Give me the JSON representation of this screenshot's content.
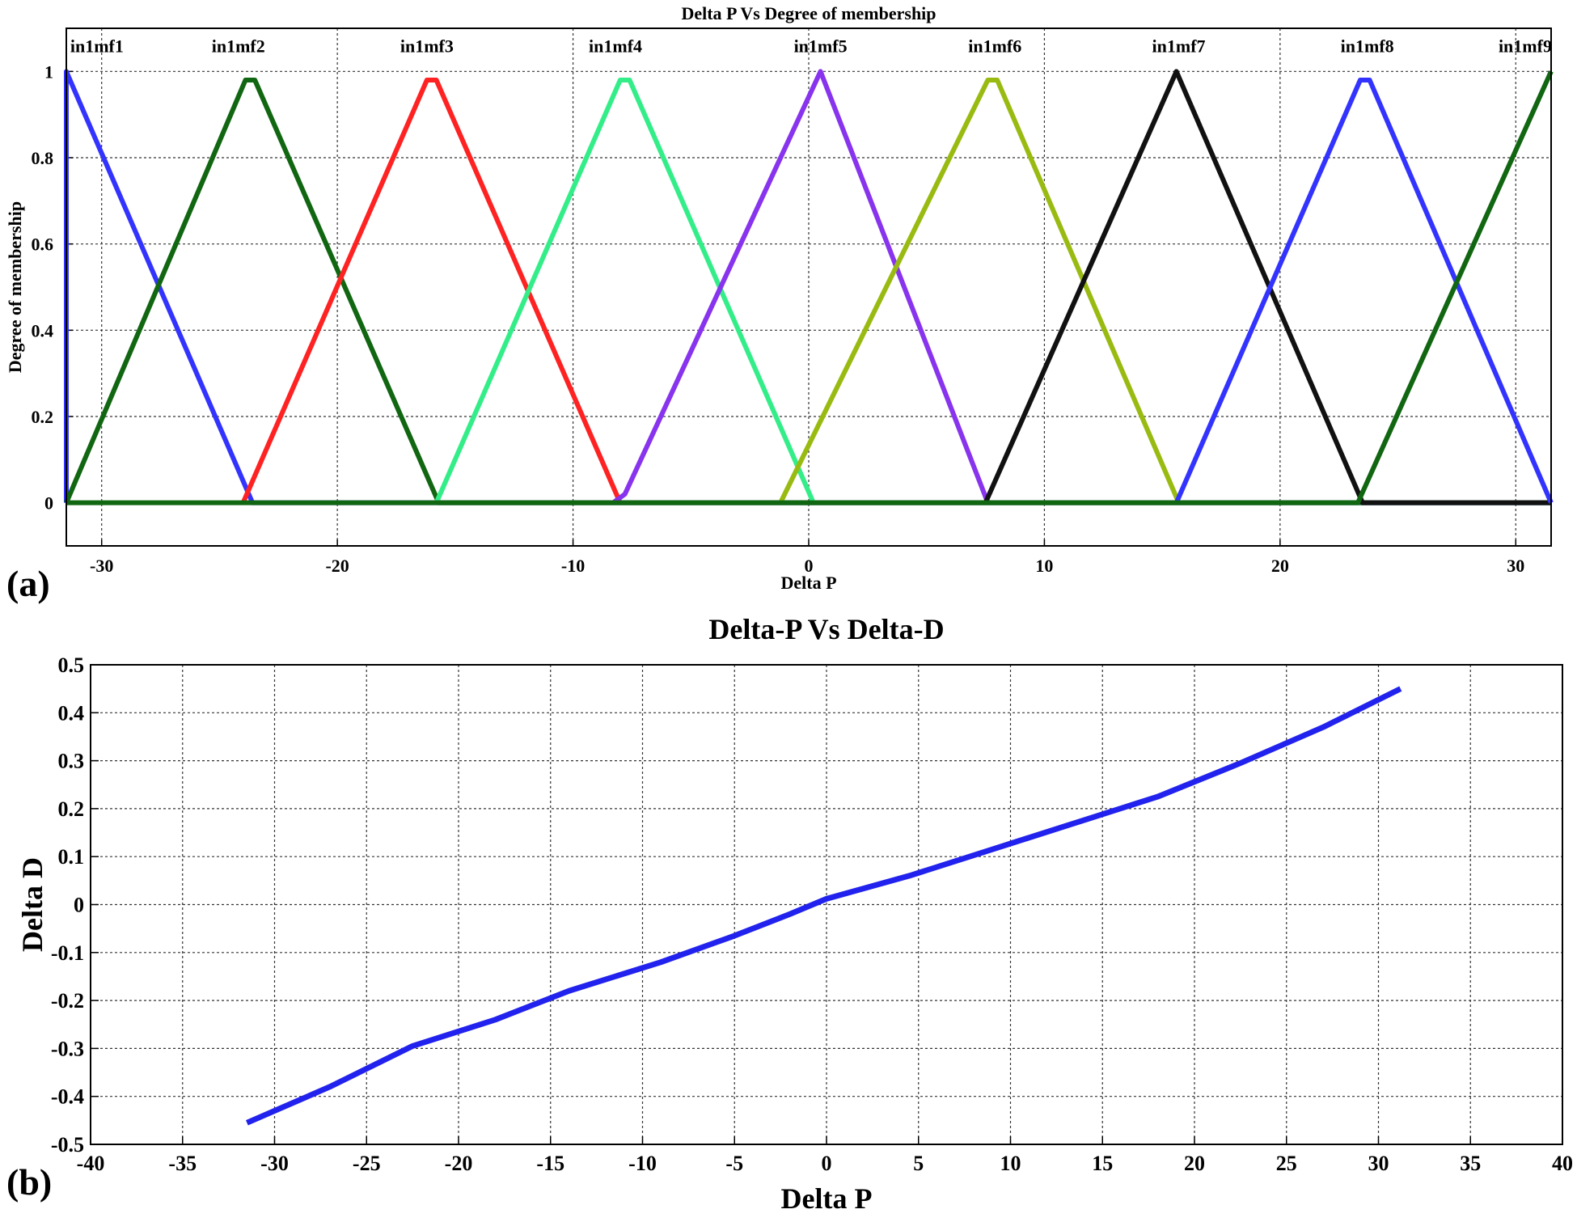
{
  "panel_labels": {
    "a": "(a)",
    "b": "(b)"
  },
  "chart_data": [
    {
      "type": "line",
      "title": "Delta P Vs Degree of membership",
      "xlabel": "Delta P",
      "ylabel": "Degree of membership",
      "xlim": [
        -31.5,
        31.5
      ],
      "ylim": [
        -0.1,
        1.1
      ],
      "xticks": [
        -30,
        -20,
        -10,
        0,
        10,
        20,
        30
      ],
      "xtick_labels": [
        "-30",
        "-20",
        "-10",
        "0",
        "10",
        "20",
        "30"
      ],
      "yticks": [
        0,
        0.2,
        0.4,
        0.6,
        0.8,
        1
      ],
      "ytick_labels": [
        "0",
        "0.2",
        "0.4",
        "0.6",
        "0.8",
        "1"
      ],
      "grid": true,
      "series": [
        {
          "name": "in1mf1",
          "color": "#3333ff",
          "label_at": [
            -30.2,
            1.06
          ],
          "x": [
            -31.5,
            -31.5,
            -23.6,
            31.5
          ],
          "y": [
            0,
            1,
            0,
            0
          ]
        },
        {
          "name": "in1mf2",
          "color": "#116611",
          "label_at": [
            -24.2,
            1.06
          ],
          "x": [
            -31.5,
            -23.9,
            -23.5,
            -15.7,
            31.5
          ],
          "y": [
            0,
            0.98,
            0.98,
            0,
            0
          ]
        },
        {
          "name": "in1mf3",
          "color": "#ff2222",
          "label_at": [
            -16.2,
            1.06
          ],
          "x": [
            -24.0,
            -16.2,
            -15.8,
            -8.0
          ],
          "y": [
            0,
            0.98,
            0.98,
            0
          ]
        },
        {
          "name": "in1mf4",
          "color": "#33ee88",
          "label_at": [
            -8.2,
            1.06
          ],
          "x": [
            -15.8,
            -8.0,
            -7.6,
            0.2
          ],
          "y": [
            0,
            0.98,
            0.98,
            0
          ]
        },
        {
          "name": "in1mf5",
          "color": "#8833ee",
          "label_at": [
            0.5,
            1.06
          ],
          "x": [
            -8.3,
            -7.8,
            0.5,
            7.6
          ],
          "y": [
            0,
            0.02,
            1,
            0
          ]
        },
        {
          "name": "in1mf6",
          "color": "#99bb11",
          "label_at": [
            7.9,
            1.06
          ],
          "x": [
            -1.2,
            7.6,
            8.0,
            15.7
          ],
          "y": [
            0,
            0.98,
            0.98,
            0
          ]
        },
        {
          "name": "in1mf7",
          "color": "#111111",
          "label_at": [
            15.7,
            1.06
          ],
          "x": [
            7.5,
            15.6,
            23.5,
            31.5
          ],
          "y": [
            0,
            1,
            0,
            0
          ]
        },
        {
          "name": "in1mf8",
          "color": "#3333ff",
          "label_at": [
            23.7,
            1.06
          ],
          "x": [
            15.6,
            23.4,
            23.8,
            31.5
          ],
          "y": [
            0,
            0.98,
            0.98,
            0
          ]
        },
        {
          "name": "in1mf9",
          "color": "#116611",
          "label_at": [
            30.4,
            1.06
          ],
          "x": [
            -31.5,
            23.3,
            31.5
          ],
          "y": [
            0,
            0,
            1
          ]
        }
      ]
    },
    {
      "type": "line",
      "title": "Delta-P Vs Delta-D",
      "xlabel": "Delta P",
      "ylabel": "Delta D",
      "xlim": [
        -40,
        40
      ],
      "ylim": [
        -0.5,
        0.5
      ],
      "xticks": [
        -40,
        -35,
        -30,
        -25,
        -20,
        -15,
        -10,
        -5,
        0,
        5,
        10,
        15,
        20,
        25,
        30,
        35,
        40
      ],
      "xtick_labels": [
        "-40",
        "-35",
        "-30",
        "-25",
        "-20",
        "-15",
        "-10",
        "-5",
        "0",
        "5",
        "10",
        "15",
        "20",
        "25",
        "30",
        "35",
        "40"
      ],
      "yticks": [
        -0.5,
        -0.4,
        -0.3,
        -0.2,
        -0.1,
        0,
        0.1,
        0.2,
        0.3,
        0.4,
        0.5
      ],
      "ytick_labels": [
        "-0.5",
        "-0.4",
        "-0.3",
        "-0.2",
        "-0.1",
        "0",
        "0.1",
        "0.2",
        "0.3",
        "0.4",
        "0.5"
      ],
      "grid": true,
      "series": [
        {
          "color": "#2222ee",
          "x": [
            -31.5,
            -27,
            -22.5,
            -18,
            -14,
            -9,
            -5,
            -2,
            0,
            4.5,
            9,
            13.5,
            18,
            22.5,
            27,
            31.2
          ],
          "y": [
            -0.455,
            -0.38,
            -0.295,
            -0.24,
            -0.18,
            -0.12,
            -0.065,
            -0.02,
            0.012,
            0.06,
            0.115,
            0.17,
            0.225,
            0.295,
            0.37,
            0.45
          ]
        }
      ]
    }
  ]
}
